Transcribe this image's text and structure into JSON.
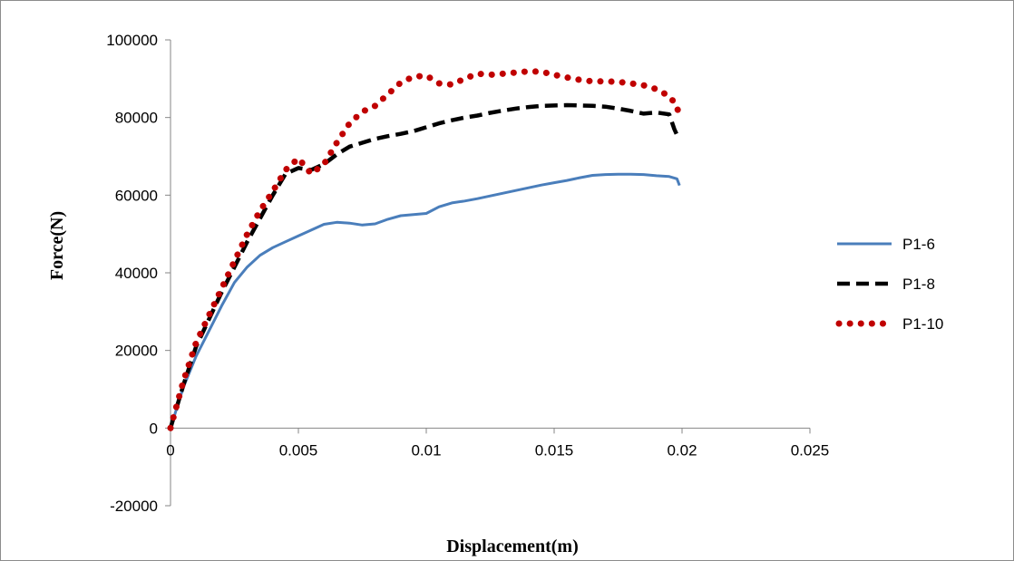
{
  "chart_data": {
    "type": "line",
    "title": "",
    "xlabel": "Displacement(m)",
    "ylabel": "Force(N)",
    "xlim": [
      0,
      0.025
    ],
    "ylim": [
      -20000,
      100000
    ],
    "x_ticks": [
      {
        "value": 0,
        "label": "0"
      },
      {
        "value": 0.005,
        "label": "0.005"
      },
      {
        "value": 0.01,
        "label": "0.01"
      },
      {
        "value": 0.015,
        "label": "0.015"
      },
      {
        "value": 0.02,
        "label": "0.02"
      },
      {
        "value": 0.025,
        "label": "0.025"
      }
    ],
    "y_ticks": [
      {
        "value": -20000,
        "label": "-20000"
      },
      {
        "value": 0,
        "label": "0"
      },
      {
        "value": 20000,
        "label": "20000"
      },
      {
        "value": 40000,
        "label": "40000"
      },
      {
        "value": 60000,
        "label": "60000"
      },
      {
        "value": 80000,
        "label": "80000"
      },
      {
        "value": 100000,
        "label": "100000"
      }
    ],
    "grid": false,
    "legend_position": "right",
    "series": [
      {
        "name": "P1-6",
        "color": "#4a7ebb",
        "style": "solid",
        "points": [
          [
            0,
            0
          ],
          [
            0.0005,
            10500
          ],
          [
            0.001,
            18500
          ],
          [
            0.0015,
            25000
          ],
          [
            0.002,
            31500
          ],
          [
            0.0025,
            37500
          ],
          [
            0.003,
            41500
          ],
          [
            0.0035,
            44500
          ],
          [
            0.004,
            46500
          ],
          [
            0.0045,
            48000
          ],
          [
            0.005,
            49500
          ],
          [
            0.0055,
            51000
          ],
          [
            0.006,
            52500
          ],
          [
            0.0065,
            53000
          ],
          [
            0.007,
            52800
          ],
          [
            0.0075,
            52300
          ],
          [
            0.008,
            52600
          ],
          [
            0.0085,
            53800
          ],
          [
            0.009,
            54700
          ],
          [
            0.0095,
            55000
          ],
          [
            0.01,
            55300
          ],
          [
            0.0105,
            57000
          ],
          [
            0.011,
            58000
          ],
          [
            0.0115,
            58500
          ],
          [
            0.012,
            59100
          ],
          [
            0.0125,
            59800
          ],
          [
            0.013,
            60500
          ],
          [
            0.0135,
            61200
          ],
          [
            0.014,
            61900
          ],
          [
            0.0145,
            62600
          ],
          [
            0.015,
            63200
          ],
          [
            0.0155,
            63800
          ],
          [
            0.016,
            64500
          ],
          [
            0.0165,
            65100
          ],
          [
            0.017,
            65300
          ],
          [
            0.0175,
            65400
          ],
          [
            0.018,
            65400
          ],
          [
            0.0185,
            65300
          ],
          [
            0.019,
            65000
          ],
          [
            0.0195,
            64800
          ],
          [
            0.0198,
            64200
          ],
          [
            0.0199,
            62500
          ]
        ]
      },
      {
        "name": "P1-8",
        "color": "#000000",
        "style": "dash",
        "points": [
          [
            0,
            0
          ],
          [
            0.0005,
            11000
          ],
          [
            0.001,
            21000
          ],
          [
            0.0015,
            28000
          ],
          [
            0.002,
            35000
          ],
          [
            0.0025,
            41500
          ],
          [
            0.003,
            48000
          ],
          [
            0.0035,
            54000
          ],
          [
            0.004,
            60000
          ],
          [
            0.0045,
            65500
          ],
          [
            0.005,
            67000
          ],
          [
            0.0055,
            66500
          ],
          [
            0.006,
            68000
          ],
          [
            0.0065,
            70500
          ],
          [
            0.007,
            72500
          ],
          [
            0.0075,
            73500
          ],
          [
            0.008,
            74500
          ],
          [
            0.0085,
            75200
          ],
          [
            0.009,
            75800
          ],
          [
            0.0095,
            76500
          ],
          [
            0.01,
            77500
          ],
          [
            0.0105,
            78500
          ],
          [
            0.011,
            79300
          ],
          [
            0.0115,
            80000
          ],
          [
            0.012,
            80500
          ],
          [
            0.0125,
            81200
          ],
          [
            0.013,
            81800
          ],
          [
            0.0135,
            82300
          ],
          [
            0.014,
            82700
          ],
          [
            0.0145,
            83000
          ],
          [
            0.015,
            83100
          ],
          [
            0.0155,
            83200
          ],
          [
            0.016,
            83100
          ],
          [
            0.0165,
            83000
          ],
          [
            0.017,
            82800
          ],
          [
            0.0175,
            82300
          ],
          [
            0.018,
            81700
          ],
          [
            0.0185,
            81000
          ],
          [
            0.019,
            81300
          ],
          [
            0.0195,
            80800
          ],
          [
            0.0197,
            77000
          ],
          [
            0.0198,
            75500
          ]
        ]
      },
      {
        "name": "P1-10",
        "color": "#c00000",
        "style": "dot",
        "points": [
          [
            0,
            0
          ],
          [
            0.0005,
            12000
          ],
          [
            0.001,
            22000
          ],
          [
            0.0015,
            29000
          ],
          [
            0.002,
            36000
          ],
          [
            0.0025,
            43000
          ],
          [
            0.003,
            50000
          ],
          [
            0.0035,
            56000
          ],
          [
            0.004,
            61000
          ],
          [
            0.0045,
            66500
          ],
          [
            0.005,
            69500
          ],
          [
            0.0055,
            65500
          ],
          [
            0.006,
            68000
          ],
          [
            0.0065,
            73500
          ],
          [
            0.007,
            78500
          ],
          [
            0.0075,
            81500
          ],
          [
            0.008,
            83000
          ],
          [
            0.0085,
            86000
          ],
          [
            0.009,
            89000
          ],
          [
            0.0095,
            90500
          ],
          [
            0.01,
            90800
          ],
          [
            0.0105,
            88800
          ],
          [
            0.011,
            88500
          ],
          [
            0.0115,
            90000
          ],
          [
            0.012,
            91300
          ],
          [
            0.0125,
            91000
          ],
          [
            0.013,
            91300
          ],
          [
            0.0135,
            91600
          ],
          [
            0.014,
            91900
          ],
          [
            0.0145,
            91800
          ],
          [
            0.015,
            91000
          ],
          [
            0.0155,
            90300
          ],
          [
            0.016,
            89700
          ],
          [
            0.0165,
            89300
          ],
          [
            0.017,
            89300
          ],
          [
            0.0175,
            89200
          ],
          [
            0.018,
            88800
          ],
          [
            0.0185,
            88300
          ],
          [
            0.019,
            87300
          ],
          [
            0.0195,
            85500
          ],
          [
            0.0198,
            83000
          ],
          [
            0.0199,
            79500
          ]
        ]
      }
    ]
  }
}
